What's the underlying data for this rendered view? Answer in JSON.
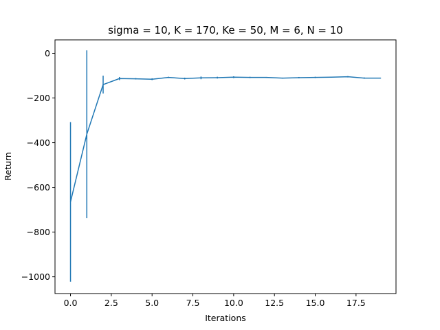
{
  "chart_data": {
    "type": "line",
    "title": "sigma = 10, K = 170, Ke = 50, M = 6, N = 10",
    "xlabel": "Iterations",
    "ylabel": "Return",
    "xlim": [
      -0.95,
      19.95
    ],
    "ylim": [
      -1075,
      60
    ],
    "xticks": [
      0.0,
      2.5,
      5.0,
      7.5,
      10.0,
      12.5,
      15.0,
      17.5
    ],
    "xtick_labels": [
      "0.0",
      "2.5",
      "5.0",
      "7.5",
      "10.0",
      "12.5",
      "15.0",
      "17.5"
    ],
    "yticks": [
      0,
      -200,
      -400,
      -600,
      -800,
      -1000
    ],
    "ytick_labels": [
      "0",
      "−200",
      "−400",
      "−600",
      "−800",
      "−1000"
    ],
    "grid": false,
    "series": [
      {
        "color": "#1f77b4",
        "x": [
          0,
          1,
          2,
          3,
          4,
          5,
          6,
          7,
          8,
          9,
          10,
          11,
          12,
          13,
          14,
          15,
          16,
          17,
          18,
          19
        ],
        "y": [
          -665,
          -362,
          -140,
          -113,
          -114,
          -116,
          -108,
          -113,
          -110,
          -109,
          -107,
          -108,
          -108,
          -111,
          -109,
          -108,
          -107,
          -105,
          -111,
          -111
        ],
        "yerr": [
          357,
          375,
          40,
          7,
          3,
          4,
          3,
          4,
          6,
          4,
          4,
          3,
          2,
          2,
          3,
          3,
          2,
          3,
          3,
          2
        ]
      }
    ]
  }
}
